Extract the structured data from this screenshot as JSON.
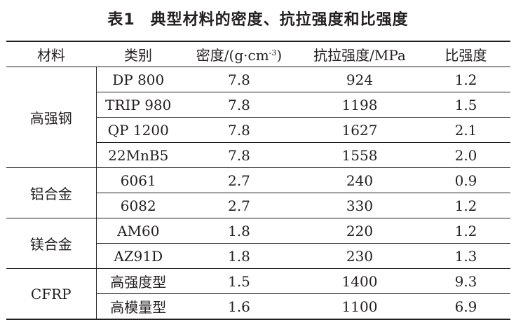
{
  "caption": {
    "number": "表1",
    "title": "典型材料的密度、抗拉强度和比强度"
  },
  "headers": {
    "material": "材料",
    "type": "类别",
    "density_prefix": "密度/(g·cm",
    "density_exp": "-3",
    "density_suffix": ")",
    "tensile": "抗拉强度/MPa",
    "specific": "比强度"
  },
  "groups": [
    {
      "material": "高强钢",
      "rows": [
        {
          "type": "DP 800",
          "density": "7.8",
          "tensile": "924",
          "specific": "1.2"
        },
        {
          "type": "TRIP 980",
          "density": "7.8",
          "tensile": "1198",
          "specific": "1.5"
        },
        {
          "type": "QP 1200",
          "density": "7.8",
          "tensile": "1627",
          "specific": "2.1"
        },
        {
          "type": "22MnB5",
          "density": "7.8",
          "tensile": "1558",
          "specific": "2.0"
        }
      ]
    },
    {
      "material": "铝合金",
      "rows": [
        {
          "type": "6061",
          "density": "2.7",
          "tensile": "240",
          "specific": "0.9"
        },
        {
          "type": "6082",
          "density": "2.7",
          "tensile": "330",
          "specific": "1.2"
        }
      ]
    },
    {
      "material": "镁合金",
      "rows": [
        {
          "type": "AM60",
          "density": "1.8",
          "tensile": "220",
          "specific": "1.2"
        },
        {
          "type": "AZ91D",
          "density": "1.8",
          "tensile": "230",
          "specific": "1.3"
        }
      ]
    },
    {
      "material": "CFRP",
      "rows": [
        {
          "type": "高强度型",
          "density": "1.5",
          "tensile": "1400",
          "specific": "9.3"
        },
        {
          "type": "高模量型",
          "density": "1.6",
          "tensile": "1100",
          "specific": "6.9"
        }
      ]
    }
  ]
}
